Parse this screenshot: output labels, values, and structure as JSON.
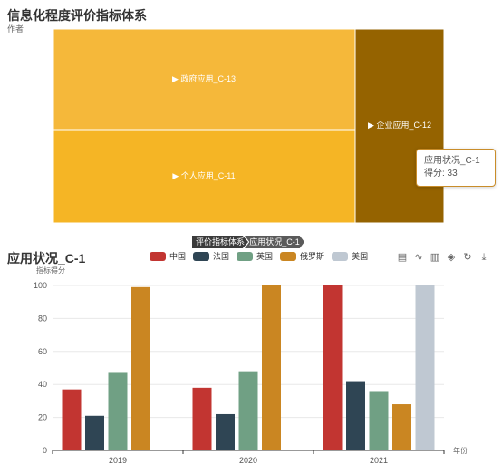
{
  "treemap": {
    "title": "信息化程度评价指标体系",
    "subtitle": "作者",
    "nodes": [
      {
        "label": "▶ 政府应用_C-13",
        "color": "#f5b83a"
      },
      {
        "label": "▶ 个人应用_C-11",
        "color": "#f5b525"
      },
      {
        "label": "▶ 企业应用_C-12",
        "color": "#956300"
      }
    ],
    "tooltip": {
      "line1": "应用状况_C-1",
      "line2": "得分: 33"
    }
  },
  "breadcrumb": [
    "评价指标体系",
    "应用状况_C-1"
  ],
  "toolbar": [
    "data-view-icon",
    "line-chart-icon",
    "bar-chart-icon",
    "stack-icon",
    "restore-icon",
    "download-icon"
  ],
  "chart_data": {
    "type": "bar",
    "title": "应用状况_C-1",
    "ylabel": "指标得分",
    "xlabel": "年份",
    "ylim": [
      0,
      100
    ],
    "yticks": [
      0,
      20,
      40,
      60,
      80,
      100
    ],
    "categories": [
      "2019",
      "2020",
      "2021"
    ],
    "series": [
      {
        "name": "中国",
        "color": "#c23531",
        "values": [
          37,
          38,
          100
        ]
      },
      {
        "name": "法国",
        "color": "#2f4554",
        "values": [
          21,
          22,
          42
        ]
      },
      {
        "name": "英国",
        "color": "#70a084",
        "values": [
          47,
          48,
          36
        ]
      },
      {
        "name": "俄罗斯",
        "color": "#ca8622",
        "values": [
          99,
          100,
          28
        ]
      },
      {
        "name": "美国",
        "color": "#bfc8d2",
        "values": [
          null,
          null,
          100
        ]
      }
    ]
  }
}
